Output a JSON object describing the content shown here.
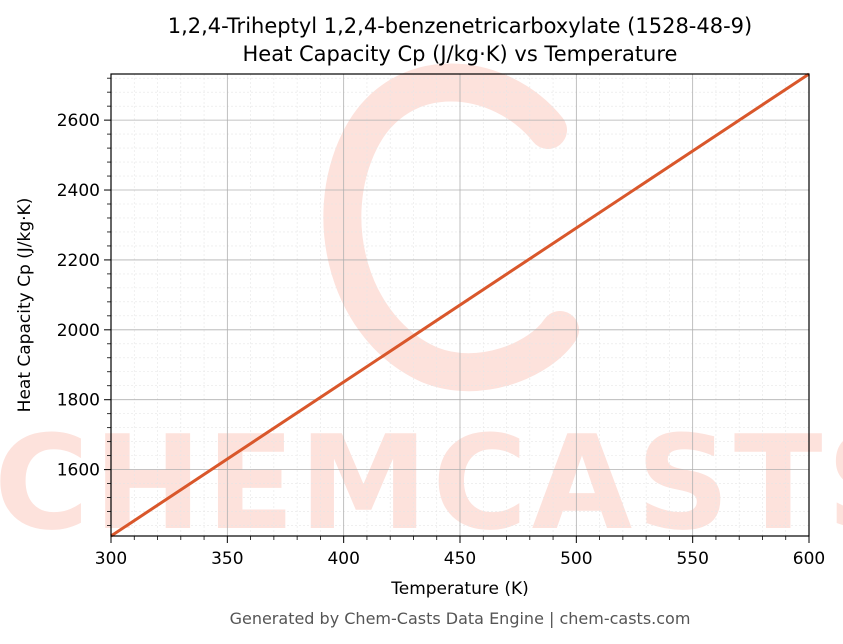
{
  "chart_data": {
    "type": "line",
    "title": "1,2,4-Triheptyl 1,2,4-benzenetricarboxylate (1528-48-9)",
    "subtitle": "Heat Capacity Cp (J/kg·K) vs Temperature",
    "xlabel": "Temperature (K)",
    "ylabel": "Heat Capacity Cp (J/kg·K)",
    "xlim": [
      300,
      600
    ],
    "ylim": [
      1410,
      2732
    ],
    "xticks": [
      300,
      350,
      400,
      450,
      500,
      550,
      600
    ],
    "yticks": [
      1600,
      1800,
      2000,
      2200,
      2400,
      2600
    ],
    "grid": true,
    "series": [
      {
        "x": [
          300,
          600
        ],
        "y": [
          1410,
          2732
        ],
        "color": "#d9572b"
      }
    ]
  },
  "watermark": {
    "text": "CHEMCASTS",
    "color": "#fde2dc"
  },
  "footer": {
    "text": "Generated by Chem-Casts Data Engine | chem-casts.com"
  }
}
